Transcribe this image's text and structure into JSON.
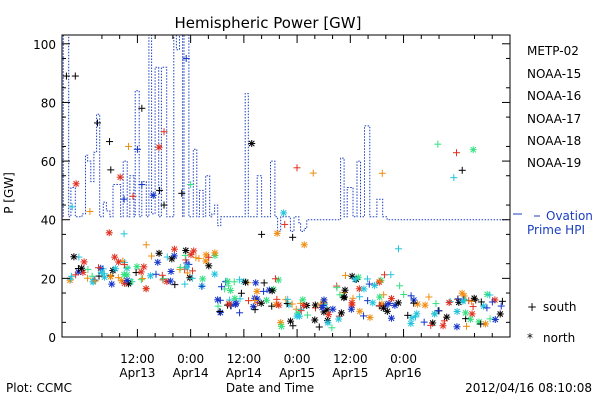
{
  "chart_data": {
    "type": "scatter",
    "title": "Hemispheric Power [GW]",
    "ylabel": "P [GW]",
    "xlabel": "Date and Time",
    "ylim": [
      0,
      103
    ],
    "xlim_hours": [
      -5,
      96
    ],
    "y_ticks": [
      0,
      20,
      40,
      60,
      80,
      100
    ],
    "x_ticks": [
      {
        "hour": 12,
        "time": "12:00",
        "date": "Apr13"
      },
      {
        "hour": 24,
        "time": "0:00",
        "date": "Apr14"
      },
      {
        "hour": 36,
        "time": "12:00",
        "date": "Apr14"
      },
      {
        "hour": 48,
        "time": "0:00",
        "date": "Apr15"
      },
      {
        "hour": 60,
        "time": "12:00",
        "date": "Apr15"
      },
      {
        "hour": 72,
        "time": "0:00",
        "date": "Apr16"
      }
    ],
    "x_minor_every_hours": 4,
    "legend_placement": "right",
    "series": [
      {
        "name": "METP-02",
        "color": "#000000"
      },
      {
        "name": "NOAA-15",
        "color": "#1433c8"
      },
      {
        "name": "NOAA-16",
        "color": "#22c4dd"
      },
      {
        "name": "NOAA-17",
        "color": "#33e080"
      },
      {
        "name": "NOAA-18",
        "color": "#f08c10"
      },
      {
        "name": "NOAA-19",
        "color": "#e03020"
      }
    ],
    "ovation": {
      "legend_line1": "Ovation",
      "legend_line2": "Prime HPI",
      "color": "#1b3fc0",
      "points": [
        [
          -4.7,
          41
        ],
        [
          -4.7,
          103
        ],
        [
          -3.5,
          103
        ],
        [
          -3.5,
          41
        ],
        [
          -3,
          41
        ],
        [
          -3,
          51
        ],
        [
          -2,
          51
        ],
        [
          -2,
          41
        ],
        [
          -0.5,
          41
        ],
        [
          -0.5,
          42
        ],
        [
          0.3,
          42
        ],
        [
          0.3,
          62
        ],
        [
          0.8,
          62
        ],
        [
          0.8,
          60
        ],
        [
          1.5,
          60
        ],
        [
          1.5,
          53
        ],
        [
          2.2,
          53
        ],
        [
          2.2,
          63
        ],
        [
          2.8,
          63
        ],
        [
          2.8,
          76
        ],
        [
          3.5,
          76
        ],
        [
          3.5,
          41
        ],
        [
          4.3,
          41
        ],
        [
          4.3,
          46
        ],
        [
          5.0,
          46
        ],
        [
          5.0,
          43
        ],
        [
          5.8,
          43
        ],
        [
          5.8,
          41
        ],
        [
          6.5,
          41
        ],
        [
          6.5,
          52
        ],
        [
          8.2,
          52
        ],
        [
          8.2,
          41
        ],
        [
          8.8,
          41
        ],
        [
          8.8,
          60
        ],
        [
          9.7,
          60
        ],
        [
          9.7,
          41
        ],
        [
          10.3,
          41
        ],
        [
          10.3,
          55
        ],
        [
          11.2,
          55
        ],
        [
          11.2,
          41
        ],
        [
          11.5,
          41
        ],
        [
          11.5,
          84
        ],
        [
          12.4,
          84
        ],
        [
          12.4,
          41
        ],
        [
          13.0,
          41
        ],
        [
          13.0,
          53
        ],
        [
          14.0,
          53
        ],
        [
          14.0,
          41
        ],
        [
          14.6,
          41
        ],
        [
          14.6,
          103
        ],
        [
          15.2,
          103
        ],
        [
          15.2,
          42
        ],
        [
          16.0,
          42
        ],
        [
          16.0,
          92
        ],
        [
          16.8,
          92
        ],
        [
          16.8,
          41
        ],
        [
          17.4,
          41
        ],
        [
          17.4,
          92
        ],
        [
          18.6,
          92
        ],
        [
          18.6,
          41
        ],
        [
          20.2,
          41
        ],
        [
          20.2,
          103
        ],
        [
          20.8,
          103
        ],
        [
          20.8,
          98
        ],
        [
          21.5,
          98
        ],
        [
          21.5,
          103
        ],
        [
          22.2,
          103
        ],
        [
          22.2,
          41
        ],
        [
          22.5,
          41
        ],
        [
          22.5,
          103
        ],
        [
          23.6,
          103
        ],
        [
          23.6,
          41
        ],
        [
          24.6,
          41
        ],
        [
          24.6,
          64
        ],
        [
          25.4,
          64
        ],
        [
          25.4,
          41
        ],
        [
          26.0,
          41
        ],
        [
          26.0,
          50
        ],
        [
          26.8,
          50
        ],
        [
          26.8,
          41
        ],
        [
          27.4,
          41
        ],
        [
          27.4,
          55
        ],
        [
          28.3,
          55
        ],
        [
          28.3,
          41
        ],
        [
          28.8,
          41
        ],
        [
          28.8,
          42
        ],
        [
          29.4,
          42
        ],
        [
          29.4,
          45
        ],
        [
          30.1,
          45
        ],
        [
          30.1,
          38
        ],
        [
          30.8,
          38
        ],
        [
          30.8,
          41
        ],
        [
          31.5,
          41
        ],
        [
          31.5,
          41
        ],
        [
          36.3,
          41
        ],
        [
          36.3,
          83
        ],
        [
          37.0,
          83
        ],
        [
          37.0,
          41
        ],
        [
          39.0,
          41
        ],
        [
          39.0,
          55
        ],
        [
          40.0,
          55
        ],
        [
          40.0,
          41
        ],
        [
          42.0,
          41
        ],
        [
          42.0,
          60
        ],
        [
          43.0,
          60
        ],
        [
          43.0,
          41
        ],
        [
          43.6,
          41
        ],
        [
          43.6,
          36
        ],
        [
          44.3,
          36
        ],
        [
          44.3,
          41
        ],
        [
          45.5,
          41
        ],
        [
          45.5,
          41
        ],
        [
          46.5,
          41
        ],
        [
          46.5,
          36
        ],
        [
          47.3,
          36
        ],
        [
          47.3,
          41
        ],
        [
          48.4,
          41
        ],
        [
          48.4,
          39
        ],
        [
          48.8,
          39
        ],
        [
          48.8,
          36
        ],
        [
          49.6,
          36
        ],
        [
          49.6,
          37
        ],
        [
          50.2,
          37
        ],
        [
          50.2,
          40
        ],
        [
          57.8,
          40
        ],
        [
          57.8,
          61
        ],
        [
          58.6,
          61
        ],
        [
          58.6,
          41
        ],
        [
          59.3,
          41
        ],
        [
          59.3,
          51
        ],
        [
          60.6,
          51
        ],
        [
          60.6,
          41
        ],
        [
          61.5,
          41
        ],
        [
          61.5,
          60
        ],
        [
          62.3,
          60
        ],
        [
          62.3,
          41
        ],
        [
          63.2,
          41
        ],
        [
          63.2,
          72
        ],
        [
          64.4,
          72
        ],
        [
          64.4,
          41
        ],
        [
          66.0,
          41
        ],
        [
          66.0,
          47
        ],
        [
          67.3,
          47
        ],
        [
          67.3,
          41
        ],
        [
          68.3,
          41
        ],
        [
          68.3,
          40
        ],
        [
          95.5,
          40
        ]
      ]
    }
  },
  "legend": {
    "markers": [
      {
        "symbol": "+",
        "label": "south"
      },
      {
        "symbol": "*",
        "label": "north"
      }
    ]
  },
  "footer": {
    "left": "Plot: CCMC",
    "right": "2012/04/16 08:10:08"
  }
}
